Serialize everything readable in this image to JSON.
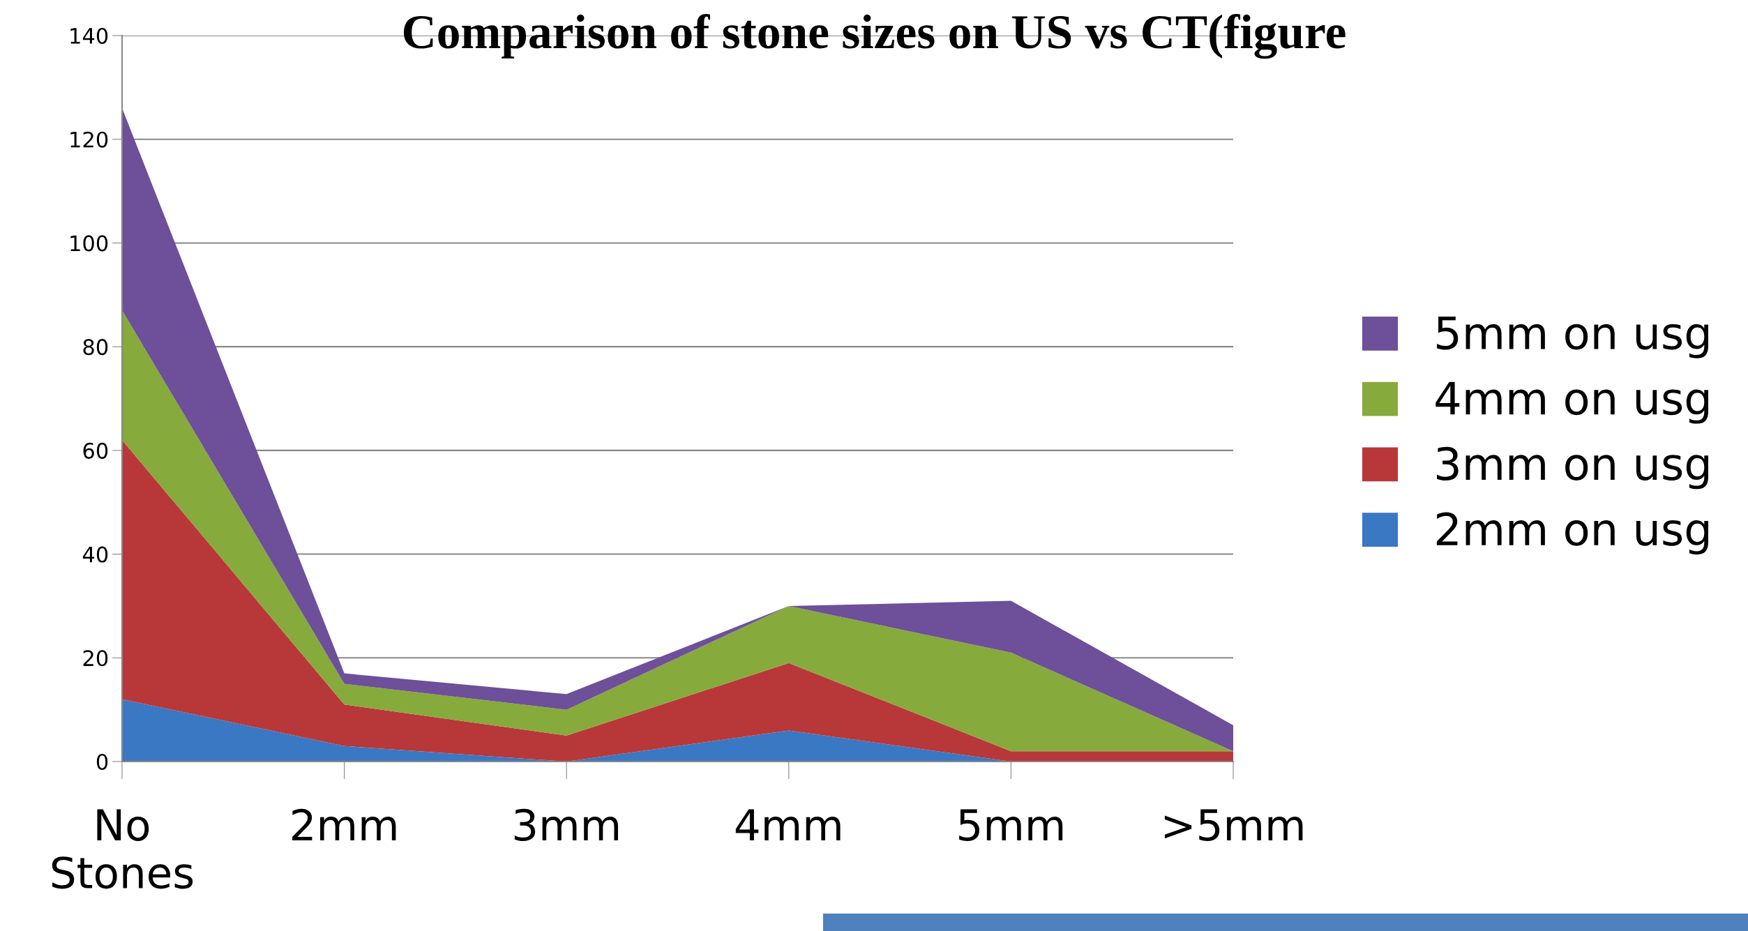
{
  "chart_data": {
    "type": "area",
    "stacked": true,
    "title": "Comparison of stone sizes on US vs CT(figure",
    "categories": [
      "No\nStones",
      "2mm",
      "3mm",
      "4mm",
      "5mm",
      ">5mm"
    ],
    "series": [
      {
        "name": "2mm on usg",
        "color": "#3a78c4",
        "values": [
          12,
          3,
          0,
          6,
          0,
          0
        ]
      },
      {
        "name": "3mm on usg",
        "color": "#b8383a",
        "values": [
          50,
          8,
          5,
          13,
          2,
          2
        ]
      },
      {
        "name": "4mm on usg",
        "color": "#87aa3c",
        "values": [
          25,
          4,
          5,
          11,
          19,
          0
        ]
      },
      {
        "name": "5mm on usg",
        "color": "#6d4f9a",
        "values": [
          39,
          2,
          3,
          0,
          10,
          5
        ]
      }
    ],
    "ylim": [
      0,
      140
    ],
    "yticks": [
      0,
      20,
      40,
      60,
      80,
      100,
      120,
      140
    ],
    "grid": "y",
    "legend": "right"
  }
}
